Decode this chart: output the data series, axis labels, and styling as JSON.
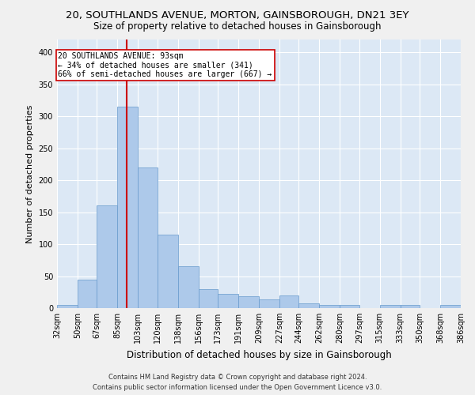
{
  "title": "20, SOUTHLANDS AVENUE, MORTON, GAINSBOROUGH, DN21 3EY",
  "subtitle": "Size of property relative to detached houses in Gainsborough",
  "xlabel": "Distribution of detached houses by size in Gainsborough",
  "ylabel": "Number of detached properties",
  "footer_line1": "Contains HM Land Registry data © Crown copyright and database right 2024.",
  "footer_line2": "Contains public sector information licensed under the Open Government Licence v3.0.",
  "property_sqm": 93,
  "property_label": "20 SOUTHLANDS AVENUE: 93sqm",
  "annotation_line2": "← 34% of detached houses are smaller (341)",
  "annotation_line3": "66% of semi-detached houses are larger (667) →",
  "bins": [
    32,
    50,
    67,
    85,
    103,
    120,
    138,
    156,
    173,
    191,
    209,
    227,
    244,
    262,
    280,
    297,
    315,
    333,
    350,
    368,
    386
  ],
  "bar_heights": [
    5,
    45,
    160,
    315,
    220,
    115,
    65,
    30,
    22,
    18,
    13,
    20,
    7,
    5,
    5,
    0,
    5,
    5,
    0,
    5
  ],
  "bar_color": "#adc9ea",
  "bar_edge_color": "#6699cc",
  "vline_x": 93,
  "vline_color": "#cc0000",
  "background_color": "#dce8f5",
  "grid_color": "#ffffff",
  "fig_background": "#f0f0f0",
  "ylim": [
    0,
    420
  ],
  "yticks": [
    0,
    50,
    100,
    150,
    200,
    250,
    300,
    350,
    400
  ],
  "annotation_box_color": "#cc0000",
  "title_fontsize": 9.5,
  "subtitle_fontsize": 8.5,
  "ylabel_fontsize": 8,
  "xlabel_fontsize": 8.5,
  "footer_fontsize": 6,
  "tick_fontsize": 7,
  "annot_fontsize": 7
}
